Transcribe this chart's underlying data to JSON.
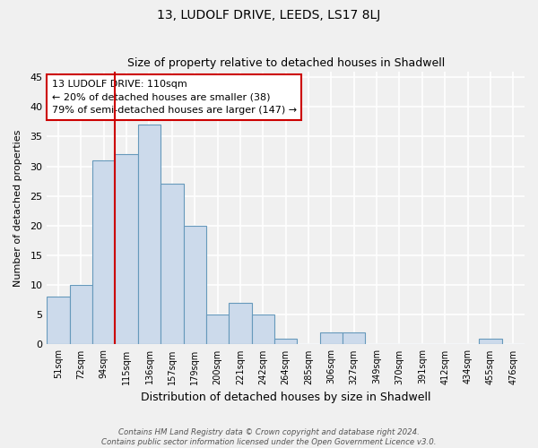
{
  "title": "13, LUDOLF DRIVE, LEEDS, LS17 8LJ",
  "subtitle": "Size of property relative to detached houses in Shadwell",
  "xlabel": "Distribution of detached houses by size in Shadwell",
  "ylabel": "Number of detached properties",
  "bar_labels": [
    "51sqm",
    "72sqm",
    "94sqm",
    "115sqm",
    "136sqm",
    "157sqm",
    "179sqm",
    "200sqm",
    "221sqm",
    "242sqm",
    "264sqm",
    "285sqm",
    "306sqm",
    "327sqm",
    "349sqm",
    "370sqm",
    "391sqm",
    "412sqm",
    "434sqm",
    "455sqm",
    "476sqm"
  ],
  "bar_values": [
    8,
    10,
    31,
    32,
    37,
    27,
    20,
    5,
    7,
    5,
    1,
    0,
    2,
    2,
    0,
    0,
    0,
    0,
    0,
    1,
    0
  ],
  "bar_color": "#ccdaeb",
  "bar_edge_color": "#6699bb",
  "ylim": [
    0,
    46
  ],
  "yticks": [
    0,
    5,
    10,
    15,
    20,
    25,
    30,
    35,
    40,
    45
  ],
  "property_line_index": 3,
  "property_line_color": "#cc0000",
  "annotation_line1": "13 LUDOLF DRIVE: 110sqm",
  "annotation_line2": "← 20% of detached houses are smaller (38)",
  "annotation_line3": "79% of semi-detached houses are larger (147) →",
  "footer_line1": "Contains HM Land Registry data © Crown copyright and database right 2024.",
  "footer_line2": "Contains public sector information licensed under the Open Government Licence v3.0.",
  "fig_width": 6.0,
  "fig_height": 5.0,
  "background_color": "#f0f0f0"
}
